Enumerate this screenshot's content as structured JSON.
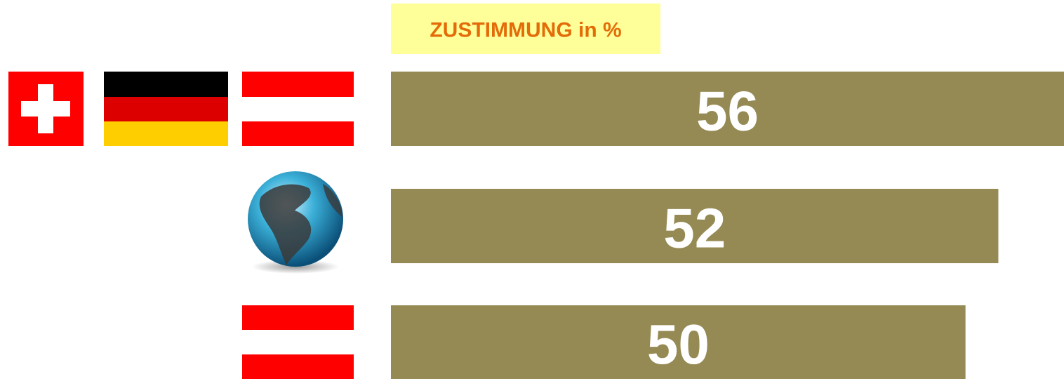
{
  "chart_data": {
    "type": "bar",
    "orientation": "horizontal",
    "title": "ZUSTIMMUNG in %",
    "categories": [
      null,
      null,
      null
    ],
    "values": [
      56,
      52,
      50
    ],
    "color": "#968a54",
    "xlim": [
      15,
      56
    ]
  }
}
